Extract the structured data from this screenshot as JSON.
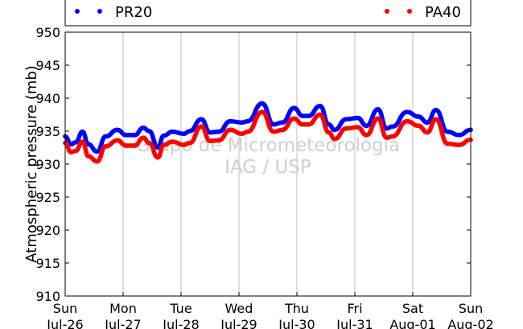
{
  "chart_data": {
    "type": "line",
    "ylabel": "Atmospheric pressure (mb)",
    "ylim": [
      910,
      950
    ],
    "yticks": [
      910,
      915,
      920,
      925,
      930,
      935,
      940,
      945,
      950
    ],
    "xticks": [
      {
        "day": "Sun",
        "date": "Jul-26"
      },
      {
        "day": "Mon",
        "date": "Jul-27"
      },
      {
        "day": "Tue",
        "date": "Jul-28"
      },
      {
        "day": "Wed",
        "date": "Jul-29"
      },
      {
        "day": "Thu",
        "date": "Jul-30"
      },
      {
        "day": "Fri",
        "date": "Jul-31"
      },
      {
        "day": "Sat",
        "date": "Aug-01"
      },
      {
        "day": "Sun",
        "date": "Aug-02"
      }
    ],
    "grid": "vertical",
    "legend_placement": "top",
    "watermark": [
      "Grupo de Micrometeorologia",
      "IAG / USP"
    ],
    "series": [
      {
        "name": "PR20",
        "color": "#0000ff",
        "points": [
          [
            0.0,
            934.2
          ],
          [
            0.1,
            933.0
          ],
          [
            0.18,
            933.3
          ],
          [
            0.3,
            934.9
          ],
          [
            0.4,
            933.0
          ],
          [
            0.55,
            931.9
          ],
          [
            0.7,
            934.2
          ],
          [
            0.9,
            935.2
          ],
          [
            1.05,
            934.4
          ],
          [
            1.2,
            934.4
          ],
          [
            1.35,
            935.5
          ],
          [
            1.45,
            935.0
          ],
          [
            1.6,
            932.5
          ],
          [
            1.7,
            934.3
          ],
          [
            1.85,
            934.9
          ],
          [
            2.05,
            934.6
          ],
          [
            2.15,
            935.0
          ],
          [
            2.35,
            936.8
          ],
          [
            2.5,
            934.8
          ],
          [
            2.65,
            934.9
          ],
          [
            2.85,
            936.5
          ],
          [
            3.05,
            936.3
          ],
          [
            3.15,
            936.5
          ],
          [
            3.4,
            939.2
          ],
          [
            3.6,
            936.0
          ],
          [
            3.75,
            936.3
          ],
          [
            3.95,
            938.5
          ],
          [
            4.1,
            937.3
          ],
          [
            4.2,
            937.3
          ],
          [
            4.4,
            938.8
          ],
          [
            4.55,
            936.0
          ],
          [
            4.65,
            935.2
          ],
          [
            4.85,
            936.8
          ],
          [
            5.05,
            937.0
          ],
          [
            5.2,
            935.8
          ],
          [
            5.4,
            938.3
          ],
          [
            5.55,
            935.4
          ],
          [
            5.65,
            935.7
          ],
          [
            5.9,
            937.9
          ],
          [
            6.1,
            937.2
          ],
          [
            6.25,
            936.3
          ],
          [
            6.4,
            938.2
          ],
          [
            6.6,
            934.9
          ],
          [
            6.8,
            934.4
          ],
          [
            7.0,
            935.2
          ]
        ]
      },
      {
        "name": "PA40",
        "color": "#ff0000",
        "points": [
          [
            0.0,
            933.2
          ],
          [
            0.1,
            931.8
          ],
          [
            0.18,
            932.0
          ],
          [
            0.3,
            933.4
          ],
          [
            0.4,
            931.2
          ],
          [
            0.55,
            930.4
          ],
          [
            0.7,
            932.7
          ],
          [
            0.9,
            933.6
          ],
          [
            1.05,
            932.8
          ],
          [
            1.2,
            932.8
          ],
          [
            1.35,
            934.0
          ],
          [
            1.45,
            933.2
          ],
          [
            1.6,
            931.0
          ],
          [
            1.7,
            932.9
          ],
          [
            1.85,
            933.4
          ],
          [
            2.05,
            932.9
          ],
          [
            2.15,
            933.2
          ],
          [
            2.35,
            935.7
          ],
          [
            2.5,
            933.5
          ],
          [
            2.65,
            933.6
          ],
          [
            2.85,
            935.2
          ],
          [
            3.05,
            934.6
          ],
          [
            3.15,
            934.9
          ],
          [
            3.4,
            937.9
          ],
          [
            3.6,
            934.9
          ],
          [
            3.75,
            935.2
          ],
          [
            3.95,
            936.9
          ],
          [
            4.1,
            936.0
          ],
          [
            4.2,
            936.0
          ],
          [
            4.4,
            937.5
          ],
          [
            4.55,
            934.8
          ],
          [
            4.65,
            933.8
          ],
          [
            4.85,
            935.4
          ],
          [
            5.05,
            935.6
          ],
          [
            5.2,
            934.4
          ],
          [
            5.4,
            936.9
          ],
          [
            5.55,
            934.0
          ],
          [
            5.65,
            934.2
          ],
          [
            5.9,
            936.5
          ],
          [
            6.1,
            935.8
          ],
          [
            6.25,
            934.8
          ],
          [
            6.4,
            936.8
          ],
          [
            6.6,
            933.1
          ],
          [
            6.8,
            932.9
          ],
          [
            7.0,
            933.7
          ]
        ]
      }
    ]
  }
}
